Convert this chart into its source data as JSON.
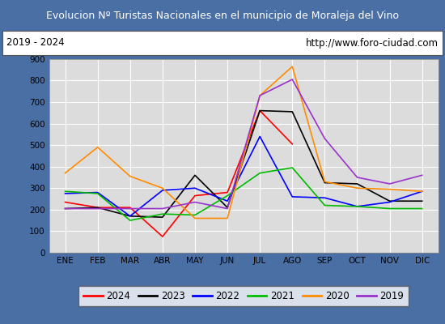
{
  "title": "Evolucion Nº Turistas Nacionales en el municipio de Moraleja del Vino",
  "subtitle_left": "2019 - 2024",
  "subtitle_right": "http://www.foro-ciudad.com",
  "xlabel_months": [
    "ENE",
    "FEB",
    "MAR",
    "ABR",
    "MAY",
    "JUN",
    "JUL",
    "AGO",
    "SEP",
    "OCT",
    "NOV",
    "DIC"
  ],
  "ylim": [
    0,
    900
  ],
  "yticks": [
    0,
    100,
    200,
    300,
    400,
    500,
    600,
    700,
    800,
    900
  ],
  "series": {
    "2024": {
      "color": "#ff0000",
      "values": [
        235,
        210,
        210,
        75,
        265,
        280,
        660,
        505,
        null,
        null,
        null,
        null
      ]
    },
    "2023": {
      "color": "#000000",
      "values": [
        205,
        210,
        170,
        165,
        360,
        210,
        660,
        655,
        325,
        320,
        240,
        240
      ]
    },
    "2022": {
      "color": "#0000ff",
      "values": [
        275,
        280,
        170,
        290,
        300,
        240,
        540,
        260,
        255,
        215,
        235,
        285
      ]
    },
    "2021": {
      "color": "#00bb00",
      "values": [
        285,
        275,
        150,
        180,
        175,
        265,
        370,
        395,
        220,
        215,
        205,
        205
      ]
    },
    "2020": {
      "color": "#ff8c00",
      "values": [
        370,
        490,
        355,
        300,
        160,
        160,
        730,
        865,
        330,
        300,
        295,
        285
      ]
    },
    "2019": {
      "color": "#9933cc",
      "values": [
        205,
        205,
        205,
        205,
        235,
        205,
        730,
        805,
        530,
        350,
        320,
        360
      ]
    }
  },
  "legend_order": [
    "2024",
    "2023",
    "2022",
    "2021",
    "2020",
    "2019"
  ],
  "title_bg_color": "#4a6fa5",
  "title_text_color": "#ffffff",
  "plot_bg_color": "#dcdcdc",
  "grid_color": "#ffffff",
  "subtitle_box_color": "#ffffff",
  "fig_bg_color": "#ffffff",
  "border_color": "#4a6fa5"
}
